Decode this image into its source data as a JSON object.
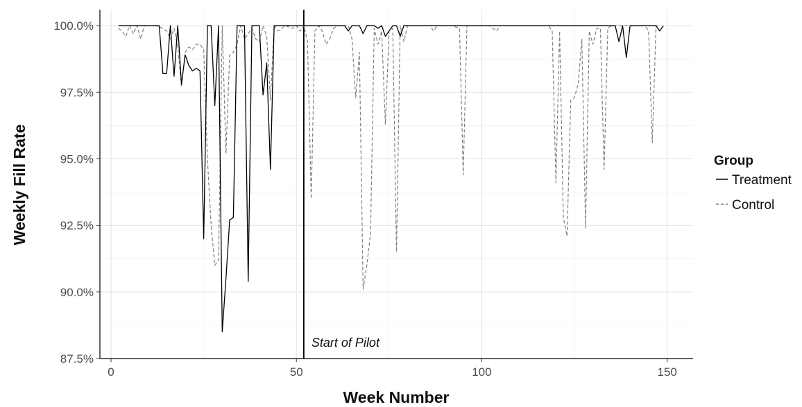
{
  "chart_data": {
    "type": "line",
    "xlabel": "Week Number",
    "ylabel": "Weekly Fill Rate",
    "xlim": [
      -3,
      157
    ],
    "ylim": [
      87.5,
      100.6
    ],
    "x_ticks": [
      {
        "value": 0,
        "label": "0"
      },
      {
        "value": 50,
        "label": "50"
      },
      {
        "value": 100,
        "label": "100"
      },
      {
        "value": 150,
        "label": "150"
      }
    ],
    "y_ticks": [
      {
        "value": 87.5,
        "label": "87.5%"
      },
      {
        "value": 90,
        "label": "90.0%"
      },
      {
        "value": 92.5,
        "label": "92.5%"
      },
      {
        "value": 95,
        "label": "95.0%"
      },
      {
        "value": 97.5,
        "label": "97.5%"
      },
      {
        "value": 100,
        "label": "100.0%"
      }
    ],
    "grid": true,
    "legend": {
      "title": "Group",
      "position": "right"
    },
    "annotation": {
      "x": 52,
      "text": "Start of Pilot"
    },
    "series": [
      {
        "name": "Treatment",
        "color": "#000000",
        "dash": "solid",
        "points": [
          [
            2,
            100
          ],
          [
            3,
            100
          ],
          [
            5,
            100
          ],
          [
            8,
            100
          ],
          [
            10,
            100
          ],
          [
            12,
            100
          ],
          [
            13,
            100
          ],
          [
            14,
            98.2
          ],
          [
            15,
            98.2
          ],
          [
            16,
            100
          ],
          [
            17,
            98.1
          ],
          [
            18,
            100
          ],
          [
            19,
            97.8
          ],
          [
            20,
            98.9
          ],
          [
            21,
            98.5
          ],
          [
            22,
            98.3
          ],
          [
            23,
            98.4
          ],
          [
            24,
            98.3
          ],
          [
            25,
            92
          ],
          [
            26,
            100
          ],
          [
            27,
            100
          ],
          [
            28,
            97
          ],
          [
            29,
            100
          ],
          [
            30,
            88.5
          ],
          [
            31,
            90.5
          ],
          [
            32,
            92.7
          ],
          [
            33,
            92.8
          ],
          [
            34,
            100
          ],
          [
            35,
            100
          ],
          [
            36,
            100
          ],
          [
            37,
            90.4
          ],
          [
            38,
            100
          ],
          [
            39,
            100
          ],
          [
            40,
            100
          ],
          [
            41,
            97.4
          ],
          [
            42,
            98.6
          ],
          [
            43,
            94.6
          ],
          [
            44,
            100
          ],
          [
            50,
            100
          ],
          [
            52,
            100
          ],
          [
            60,
            100
          ],
          [
            63,
            100
          ],
          [
            64,
            99.8
          ],
          [
            65,
            100
          ],
          [
            67,
            100
          ],
          [
            68,
            99.7
          ],
          [
            69,
            100
          ],
          [
            70,
            100
          ],
          [
            71,
            100
          ],
          [
            72,
            99.9
          ],
          [
            73,
            100
          ],
          [
            74,
            99.6
          ],
          [
            75,
            99.8
          ],
          [
            76,
            100
          ],
          [
            77,
            100
          ],
          [
            78,
            99.6
          ],
          [
            79,
            100
          ],
          [
            90,
            100
          ],
          [
            110,
            100
          ],
          [
            130,
            100
          ],
          [
            135,
            100
          ],
          [
            136,
            100
          ],
          [
            137,
            99.4
          ],
          [
            138,
            100
          ],
          [
            139,
            98.8
          ],
          [
            140,
            100
          ],
          [
            145,
            100
          ],
          [
            147,
            100
          ],
          [
            148,
            99.8
          ],
          [
            149,
            100
          ]
        ]
      },
      {
        "name": "Control",
        "color": "#7f7f7f",
        "dash": "dashed",
        "points": [
          [
            2,
            99.9
          ],
          [
            3,
            99.8
          ],
          [
            4,
            99.6
          ],
          [
            5,
            100
          ],
          [
            6,
            99.7
          ],
          [
            7,
            100
          ],
          [
            8,
            99.5
          ],
          [
            9,
            100
          ],
          [
            10,
            100
          ],
          [
            12,
            100
          ],
          [
            14,
            99.9
          ],
          [
            15,
            99.8
          ],
          [
            16,
            99.5
          ],
          [
            17,
            99.9
          ],
          [
            18,
            99.2
          ],
          [
            19,
            97.7
          ],
          [
            20,
            99
          ],
          [
            21,
            99.2
          ],
          [
            22,
            99.1
          ],
          [
            23,
            99.3
          ],
          [
            24,
            99.3
          ],
          [
            25,
            99.1
          ],
          [
            26,
            95
          ],
          [
            27,
            92.5
          ],
          [
            28,
            91
          ],
          [
            29,
            91.2
          ],
          [
            30,
            100
          ],
          [
            31,
            95.2
          ],
          [
            32,
            98.9
          ],
          [
            33,
            99
          ],
          [
            34,
            99.3
          ],
          [
            35,
            100
          ],
          [
            36,
            99.5
          ],
          [
            37,
            99.7
          ],
          [
            38,
            99.9
          ],
          [
            39,
            99.5
          ],
          [
            40,
            99.4
          ],
          [
            41,
            100
          ],
          [
            42,
            99.6
          ],
          [
            43,
            97.2
          ],
          [
            44,
            100
          ],
          [
            45,
            99.8
          ],
          [
            47,
            100
          ],
          [
            49,
            99.9
          ],
          [
            50,
            100
          ],
          [
            51,
            99.8
          ],
          [
            52,
            100
          ],
          [
            53,
            99.4
          ],
          [
            54,
            93.5
          ],
          [
            55,
            99.8
          ],
          [
            56,
            100
          ],
          [
            57,
            99.8
          ],
          [
            58,
            99.3
          ],
          [
            59,
            99.5
          ],
          [
            60,
            99.9
          ],
          [
            61,
            100
          ],
          [
            62,
            100
          ],
          [
            63,
            100
          ],
          [
            64,
            100
          ],
          [
            65,
            99.5
          ],
          [
            66,
            97.3
          ],
          [
            67,
            99
          ],
          [
            68,
            90.1
          ],
          [
            69,
            91
          ],
          [
            70,
            92.2
          ],
          [
            71,
            99.9
          ],
          [
            72,
            99.3
          ],
          [
            73,
            99.8
          ],
          [
            74,
            96.3
          ],
          [
            75,
            99.8
          ],
          [
            76,
            99.9
          ],
          [
            77,
            91.5
          ],
          [
            78,
            100
          ],
          [
            79,
            99.4
          ],
          [
            80,
            100
          ],
          [
            82,
            100
          ],
          [
            84,
            100
          ],
          [
            86,
            100
          ],
          [
            87,
            99.8
          ],
          [
            88,
            100
          ],
          [
            90,
            100
          ],
          [
            92,
            100
          ],
          [
            94,
            99.9
          ],
          [
            95,
            94.4
          ],
          [
            96,
            100
          ],
          [
            98,
            100
          ],
          [
            100,
            100
          ],
          [
            102,
            100
          ],
          [
            104,
            99.8
          ],
          [
            105,
            100
          ],
          [
            110,
            100
          ],
          [
            112,
            100
          ],
          [
            114,
            100
          ],
          [
            116,
            100
          ],
          [
            118,
            100
          ],
          [
            119,
            99.8
          ],
          [
            120,
            94.1
          ],
          [
            121,
            99.8
          ],
          [
            122,
            92.8
          ],
          [
            123,
            92.1
          ],
          [
            124,
            97.2
          ],
          [
            125,
            97.3
          ],
          [
            126,
            97.8
          ],
          [
            127,
            99.5
          ],
          [
            128,
            92.4
          ],
          [
            129,
            99.8
          ],
          [
            130,
            99.3
          ],
          [
            131,
            99.9
          ],
          [
            132,
            99.9
          ],
          [
            133,
            94.6
          ],
          [
            134,
            99.9
          ],
          [
            135,
            100
          ],
          [
            136,
            100
          ],
          [
            137,
            100
          ],
          [
            138,
            100
          ],
          [
            140,
            100
          ],
          [
            142,
            100
          ],
          [
            144,
            100
          ],
          [
            145,
            99.8
          ],
          [
            146,
            95.6
          ],
          [
            147,
            100
          ],
          [
            148,
            100
          ]
        ]
      }
    ]
  }
}
